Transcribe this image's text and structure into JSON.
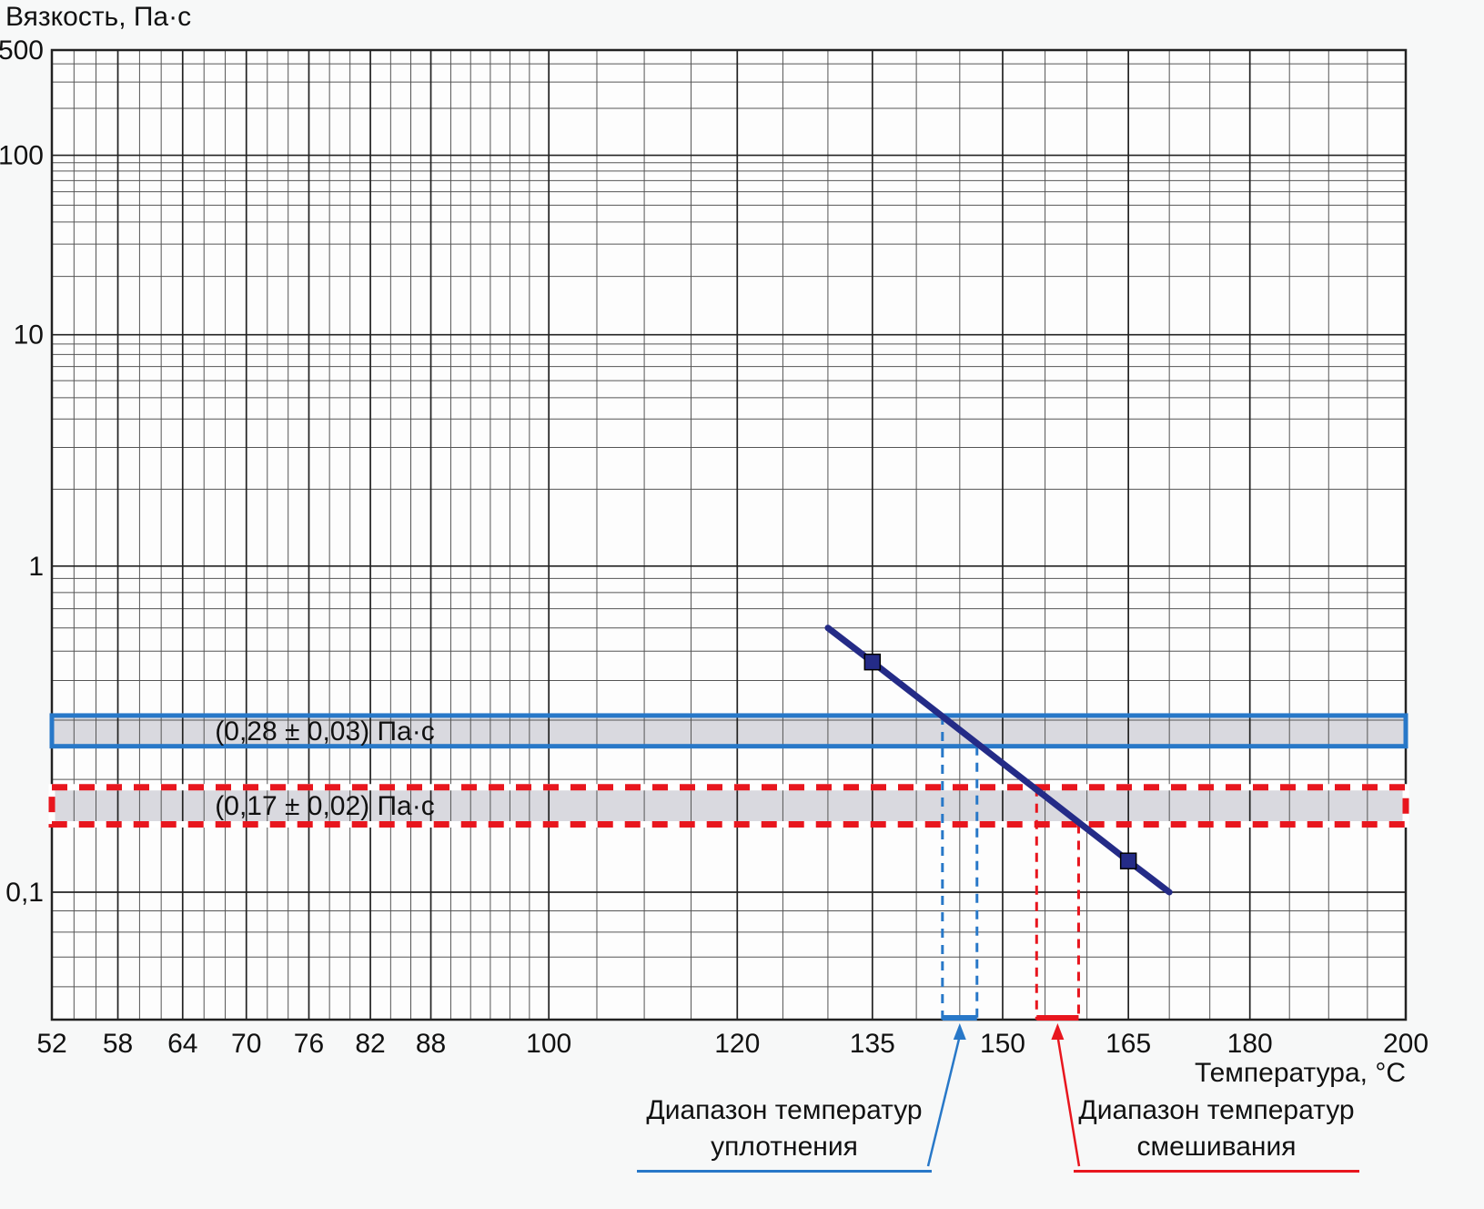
{
  "page": {
    "background": "#f7f8f8"
  },
  "chart_data": {
    "type": "line",
    "title": "",
    "x_axis": {
      "label": "Температура, °C",
      "scale": "log10-of-kelvin",
      "min": 52,
      "max": 200,
      "major_ticks": [
        52,
        58,
        64,
        70,
        76,
        82,
        88,
        100,
        120,
        135,
        150,
        165,
        180,
        200
      ],
      "tick_labels": [
        "52",
        "58",
        "64",
        "70",
        "76",
        "82",
        "88",
        "100",
        "120",
        "135",
        "150",
        "165",
        "180",
        "200"
      ],
      "minor_grid_step_below_100": 2,
      "minor_grid_step_above_100": 5
    },
    "y_axis": {
      "label": "Вязкость, Па·с",
      "scale": "log10-log10-viscosity",
      "min": 0.05,
      "max": 500,
      "ticks": [
        {
          "value": 500,
          "label": "500"
        },
        {
          "value": 100,
          "label": "100"
        },
        {
          "value": 10,
          "label": "10"
        },
        {
          "value": 1,
          "label": "1"
        },
        {
          "value": 0.1,
          "label": "0,1"
        }
      ]
    },
    "series": [
      {
        "name": "viscosity-temperature-line",
        "color": "#242b87",
        "points": [
          {
            "t": 130,
            "v": 0.6,
            "marker": false
          },
          {
            "t": 135,
            "v": 0.46,
            "marker": true
          },
          {
            "t": 165,
            "v": 0.12,
            "marker": true
          },
          {
            "t": 170,
            "v": 0.1,
            "marker": false
          }
        ]
      }
    ],
    "bands": [
      {
        "name": "compaction-viscosity-band",
        "label": "(0,28 ± 0,03) Па·с",
        "v_center": 0.28,
        "v_low": 0.25,
        "v_high": 0.31,
        "color": "#2878c8",
        "style": "solid",
        "fill": "#d9d9df"
      },
      {
        "name": "mixing-viscosity-band",
        "label": "(0,17 ± 0,02) Па·с",
        "v_center": 0.17,
        "v_low": 0.15,
        "v_high": 0.19,
        "color": "#e8161e",
        "style": "dashed",
        "fill": "#d9d9df"
      }
    ],
    "ranges": [
      {
        "name": "compaction-temperature-range",
        "t_low": 143,
        "t_high": 147,
        "color": "#2878c8",
        "annotation": [
          "Диапазон температур",
          "уплотнения"
        ]
      },
      {
        "name": "mixing-temperature-range",
        "t_low": 154,
        "t_high": 159,
        "color": "#e8161e",
        "annotation": [
          "Диапазон температур",
          "смешивания"
        ]
      }
    ],
    "grid": {
      "color_minor": "#555555",
      "color_major": "#222222",
      "background": "#fdfdfd"
    }
  }
}
